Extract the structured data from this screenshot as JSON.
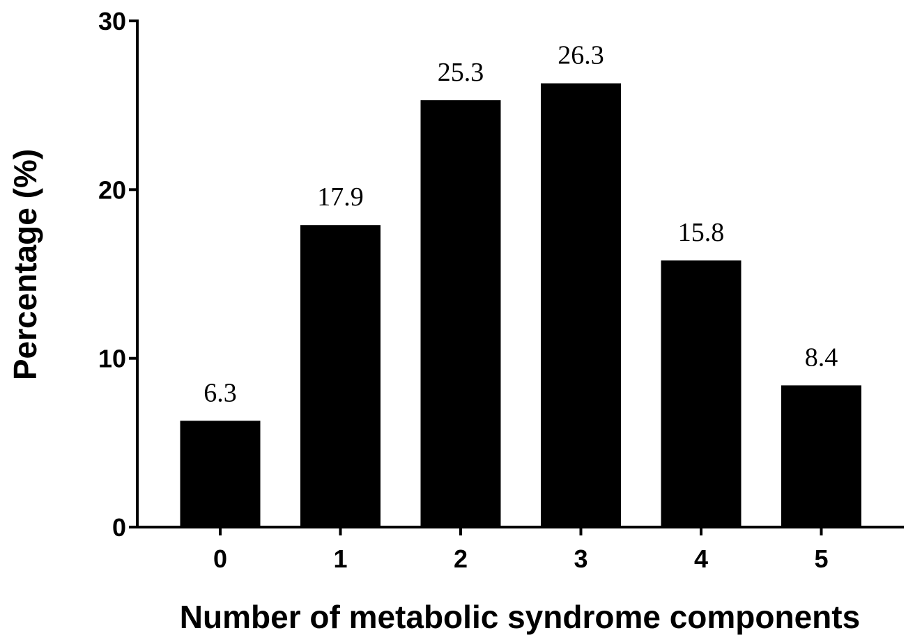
{
  "chart_data": {
    "type": "bar",
    "categories": [
      "0",
      "1",
      "2",
      "3",
      "4",
      "5"
    ],
    "values": [
      6.3,
      17.9,
      25.3,
      26.3,
      15.8,
      8.4
    ],
    "data_labels": [
      "6.3",
      "17.9",
      "25.3",
      "26.3",
      "15.8",
      "8.4"
    ],
    "xlabel": "Number of metabolic syndrome components",
    "ylabel": "Percentage (%)",
    "ylim": [
      0,
      30
    ],
    "yticks": [
      0,
      10,
      20,
      30
    ],
    "ytick_labels": [
      "0",
      "10",
      "20",
      "30"
    ],
    "grid": false,
    "legend": "none",
    "bar_color": "#000000"
  }
}
